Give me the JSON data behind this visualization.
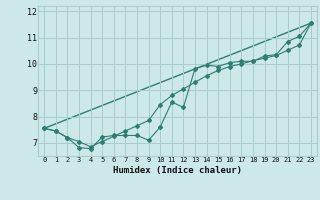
{
  "xlabel": "Humidex (Indice chaleur)",
  "bg_color": "#cce8e8",
  "grid_color": "#aacccc",
  "line_color": "#2e7d72",
  "xlim": [
    -0.5,
    23.5
  ],
  "ylim": [
    6.5,
    12.2
  ],
  "xticks": [
    0,
    1,
    2,
    3,
    4,
    5,
    6,
    7,
    8,
    9,
    10,
    11,
    12,
    13,
    14,
    15,
    16,
    17,
    18,
    19,
    20,
    21,
    22,
    23
  ],
  "yticks": [
    7,
    8,
    9,
    10,
    11,
    12
  ],
  "series1_x": [
    0,
    1,
    2,
    3,
    4,
    5,
    6,
    7,
    8,
    9,
    10,
    11,
    12,
    13,
    14,
    15,
    16,
    17,
    18,
    19,
    20,
    21,
    22,
    23
  ],
  "series1_y": [
    7.55,
    7.45,
    7.2,
    6.82,
    6.78,
    7.22,
    7.28,
    7.28,
    7.28,
    7.1,
    7.6,
    8.55,
    8.35,
    9.82,
    9.95,
    9.9,
    10.05,
    10.1,
    10.1,
    10.3,
    10.35,
    10.85,
    11.05,
    11.55
  ],
  "series2_x": [
    0,
    1,
    2,
    3,
    4,
    5,
    6,
    7,
    8,
    9,
    10,
    11,
    12,
    13,
    14,
    15,
    16,
    17,
    18,
    19,
    20,
    21,
    22,
    23
  ],
  "series2_y": [
    7.55,
    7.45,
    7.2,
    7.05,
    6.85,
    7.05,
    7.25,
    7.45,
    7.65,
    7.85,
    8.45,
    8.8,
    9.05,
    9.3,
    9.55,
    9.75,
    9.9,
    10.0,
    10.12,
    10.22,
    10.32,
    10.52,
    10.72,
    11.55
  ],
  "series3_x": [
    0,
    23
  ],
  "series3_y": [
    7.55,
    11.55
  ]
}
